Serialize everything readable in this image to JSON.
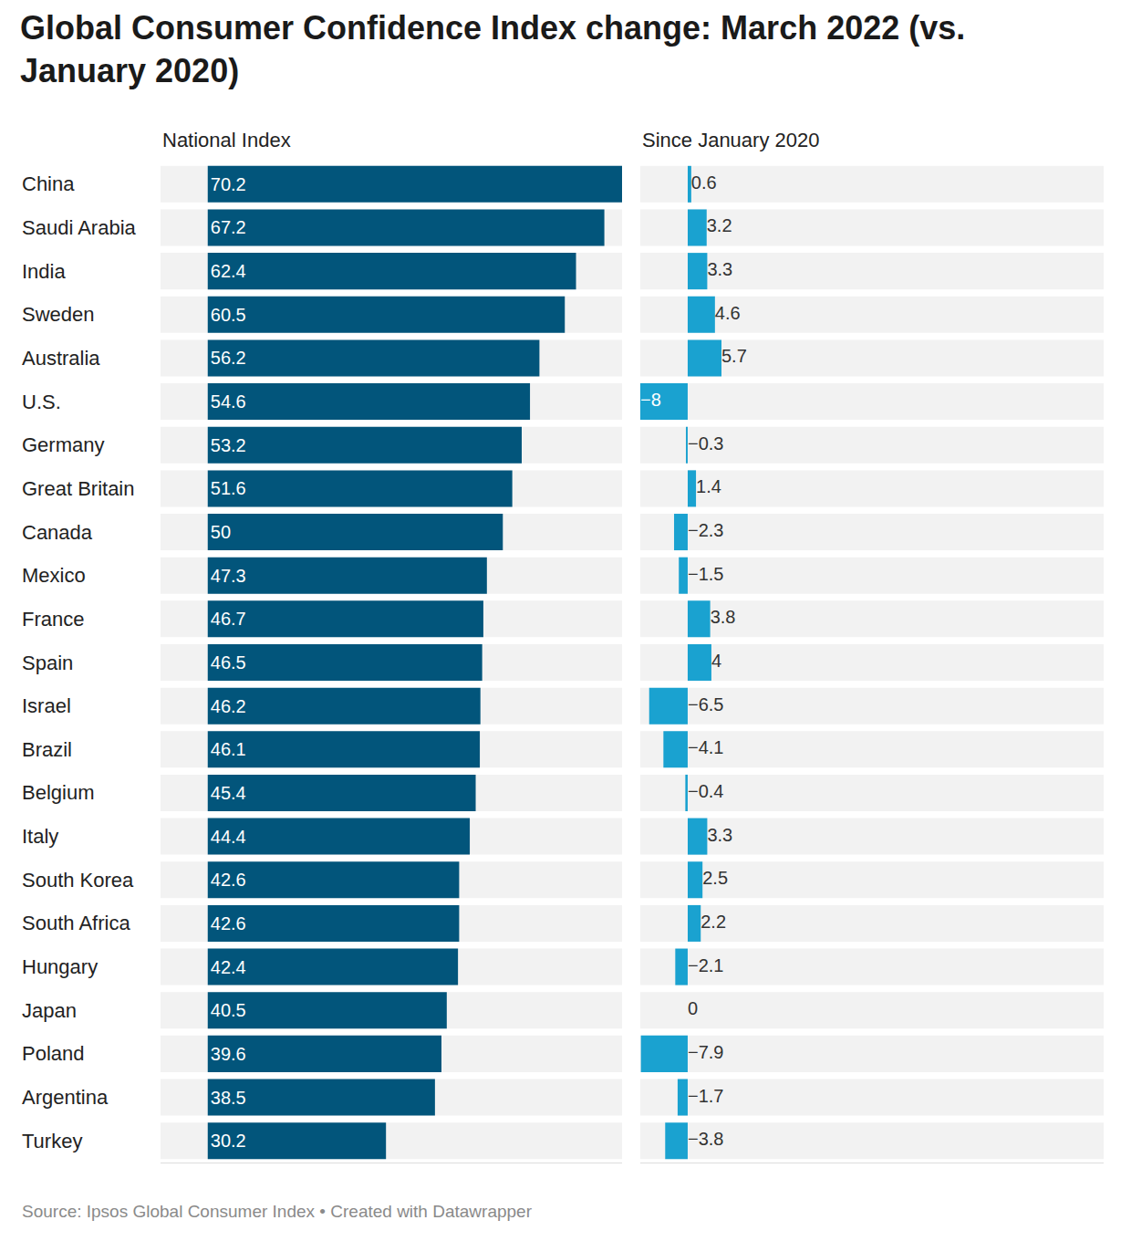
{
  "chart_data": [
    {
      "type": "bar",
      "title": "Global Consumer Confidence Index change: March 2022 (vs. January 2020)",
      "subtitle": "National Index",
      "annotations": [
        "Source: Ipsos Global Consumer Index • Created with Datawrapper"
      ],
      "orientation": "horizontal",
      "categories": [
        "China",
        "Saudi Arabia",
        "India",
        "Sweden",
        "Australia",
        "U.S.",
        "Germany",
        "Great Britain",
        "Canada",
        "Mexico",
        "France",
        "Spain",
        "Israel",
        "Brazil",
        "Belgium",
        "Italy",
        "South Korea",
        "South Africa",
        "Hungary",
        "Japan",
        "Poland",
        "Argentina",
        "Turkey"
      ],
      "values": [
        70.2,
        67.2,
        62.4,
        60.5,
        56.2,
        54.6,
        53.2,
        51.6,
        50,
        47.3,
        46.7,
        46.5,
        46.2,
        46.1,
        45.4,
        44.4,
        42.6,
        42.6,
        42.4,
        40.5,
        39.6,
        38.5,
        30.2
      ],
      "color": "#02557b",
      "xlim": [
        -8,
        70.2
      ],
      "data_labels": true,
      "tick_labels": "y",
      "grid": false
    },
    {
      "type": "bar",
      "subtitle": "Since January 2020",
      "orientation": "horizontal",
      "categories": [
        "China",
        "Saudi Arabia",
        "India",
        "Sweden",
        "Australia",
        "U.S.",
        "Germany",
        "Great Britain",
        "Canada",
        "Mexico",
        "France",
        "Spain",
        "Israel",
        "Brazil",
        "Belgium",
        "Italy",
        "South Korea",
        "South Africa",
        "Hungary",
        "Japan",
        "Poland",
        "Argentina",
        "Turkey"
      ],
      "values": [
        0.6,
        3.2,
        3.3,
        4.6,
        5.7,
        -8,
        -0.3,
        1.4,
        -2.3,
        -1.5,
        3.8,
        4,
        -6.5,
        -4.1,
        -0.4,
        3.3,
        2.5,
        2.2,
        -2.1,
        0,
        -7.9,
        -1.7,
        -3.8
      ],
      "value_labels": [
        "0.6",
        "3.2",
        "3.3",
        "4.6",
        "5.7",
        "−8",
        "−0.3",
        "1.4",
        "−2.3",
        "−1.5",
        "3.8",
        "4",
        "−6.5",
        "−4.1",
        "−0.4",
        "3.3",
        "2.5",
        "2.2",
        "−2.1",
        "0",
        "−7.9",
        "−1.7",
        "−3.8"
      ],
      "color": "#1aa2d0",
      "xlim": [
        -8,
        70.2
      ],
      "data_labels": true,
      "tick_labels": false,
      "grid": false
    }
  ]
}
